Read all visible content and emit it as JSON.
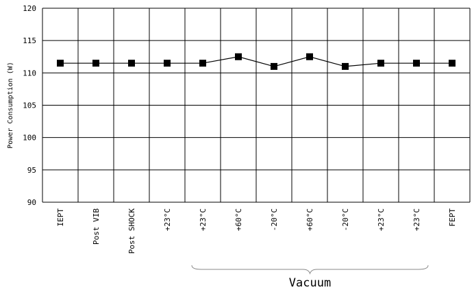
{
  "chart_data": {
    "type": "line",
    "title": "",
    "ylabel": "Power Consumption (W)",
    "xlabel": "",
    "ylim": [
      90,
      120
    ],
    "yticks": [
      90,
      95,
      100,
      105,
      110,
      115,
      120
    ],
    "grid": true,
    "categories": [
      "IEPT",
      "Post VIB",
      "Post SHOCK",
      "+23°C",
      "+23°C",
      "+60°C",
      "-20°C",
      "+60°C",
      "-20°C",
      "+23°C",
      "+23°C",
      "FEPT"
    ],
    "series": [
      {
        "values": [
          111.5,
          111.5,
          111.5,
          111.5,
          111.5,
          112.5,
          111.0,
          112.5,
          111.0,
          111.5,
          111.5,
          111.5
        ]
      }
    ],
    "annotations": [
      {
        "text": "Vacuum",
        "spans_categories": [
          4,
          10
        ]
      }
    ]
  }
}
